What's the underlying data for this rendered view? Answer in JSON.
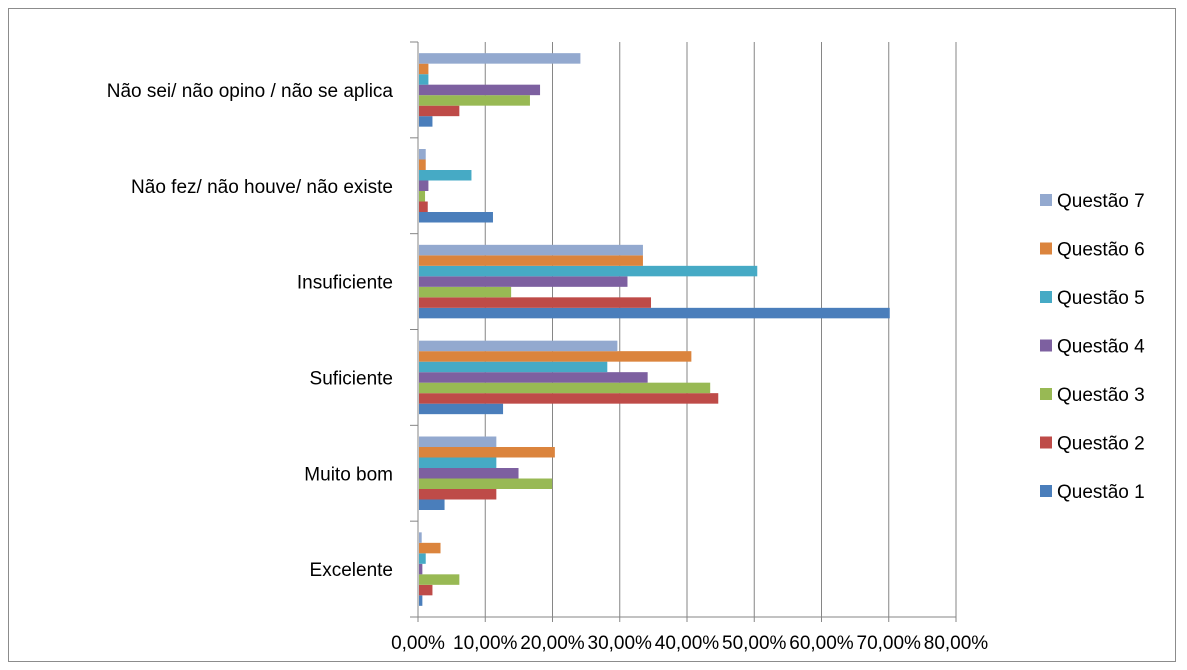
{
  "chart_data": {
    "type": "bar",
    "orientation": "horizontal",
    "categories": [
      "Excelente",
      "Muito bom",
      "Suficiente",
      "Insuficiente",
      "Não fez/ não houve/ não existe",
      "Não sei/ não opino / não se aplica"
    ],
    "series": [
      {
        "name": "Questão 1",
        "color": "#4A7EBB",
        "values": [
          0.5,
          3.8,
          12.5,
          70.0,
          11.0,
          2.0
        ]
      },
      {
        "name": "Questão 2",
        "color": "#BE4B48",
        "values": [
          2.0,
          11.5,
          44.5,
          34.5,
          1.3,
          6.0
        ]
      },
      {
        "name": "Questão 3",
        "color": "#98B954",
        "values": [
          6.0,
          19.8,
          43.3,
          13.7,
          0.9,
          16.5
        ]
      },
      {
        "name": "Questão 4",
        "color": "#7D60A0",
        "values": [
          0.5,
          14.8,
          34.0,
          31.0,
          1.4,
          18.0
        ]
      },
      {
        "name": "Questão 5",
        "color": "#46AAC5",
        "values": [
          1.0,
          11.5,
          28.0,
          50.3,
          7.8,
          1.4
        ]
      },
      {
        "name": "Questão 6",
        "color": "#DB843D",
        "values": [
          3.2,
          20.2,
          40.5,
          33.3,
          1.0,
          1.4
        ]
      },
      {
        "name": "Questão 7",
        "color": "#93A9CF",
        "values": [
          0.4,
          11.5,
          29.5,
          33.3,
          1.0,
          24.0
        ]
      }
    ],
    "xlim": [
      0,
      80
    ],
    "xticks": [
      "0,00%",
      "10,00%",
      "20,00%",
      "30,00%",
      "40,00%",
      "50,00%",
      "60,00%",
      "70,00%",
      "80,00%"
    ],
    "grid": true,
    "legend_position": "right",
    "title": "",
    "xlabel": "",
    "ylabel": ""
  }
}
